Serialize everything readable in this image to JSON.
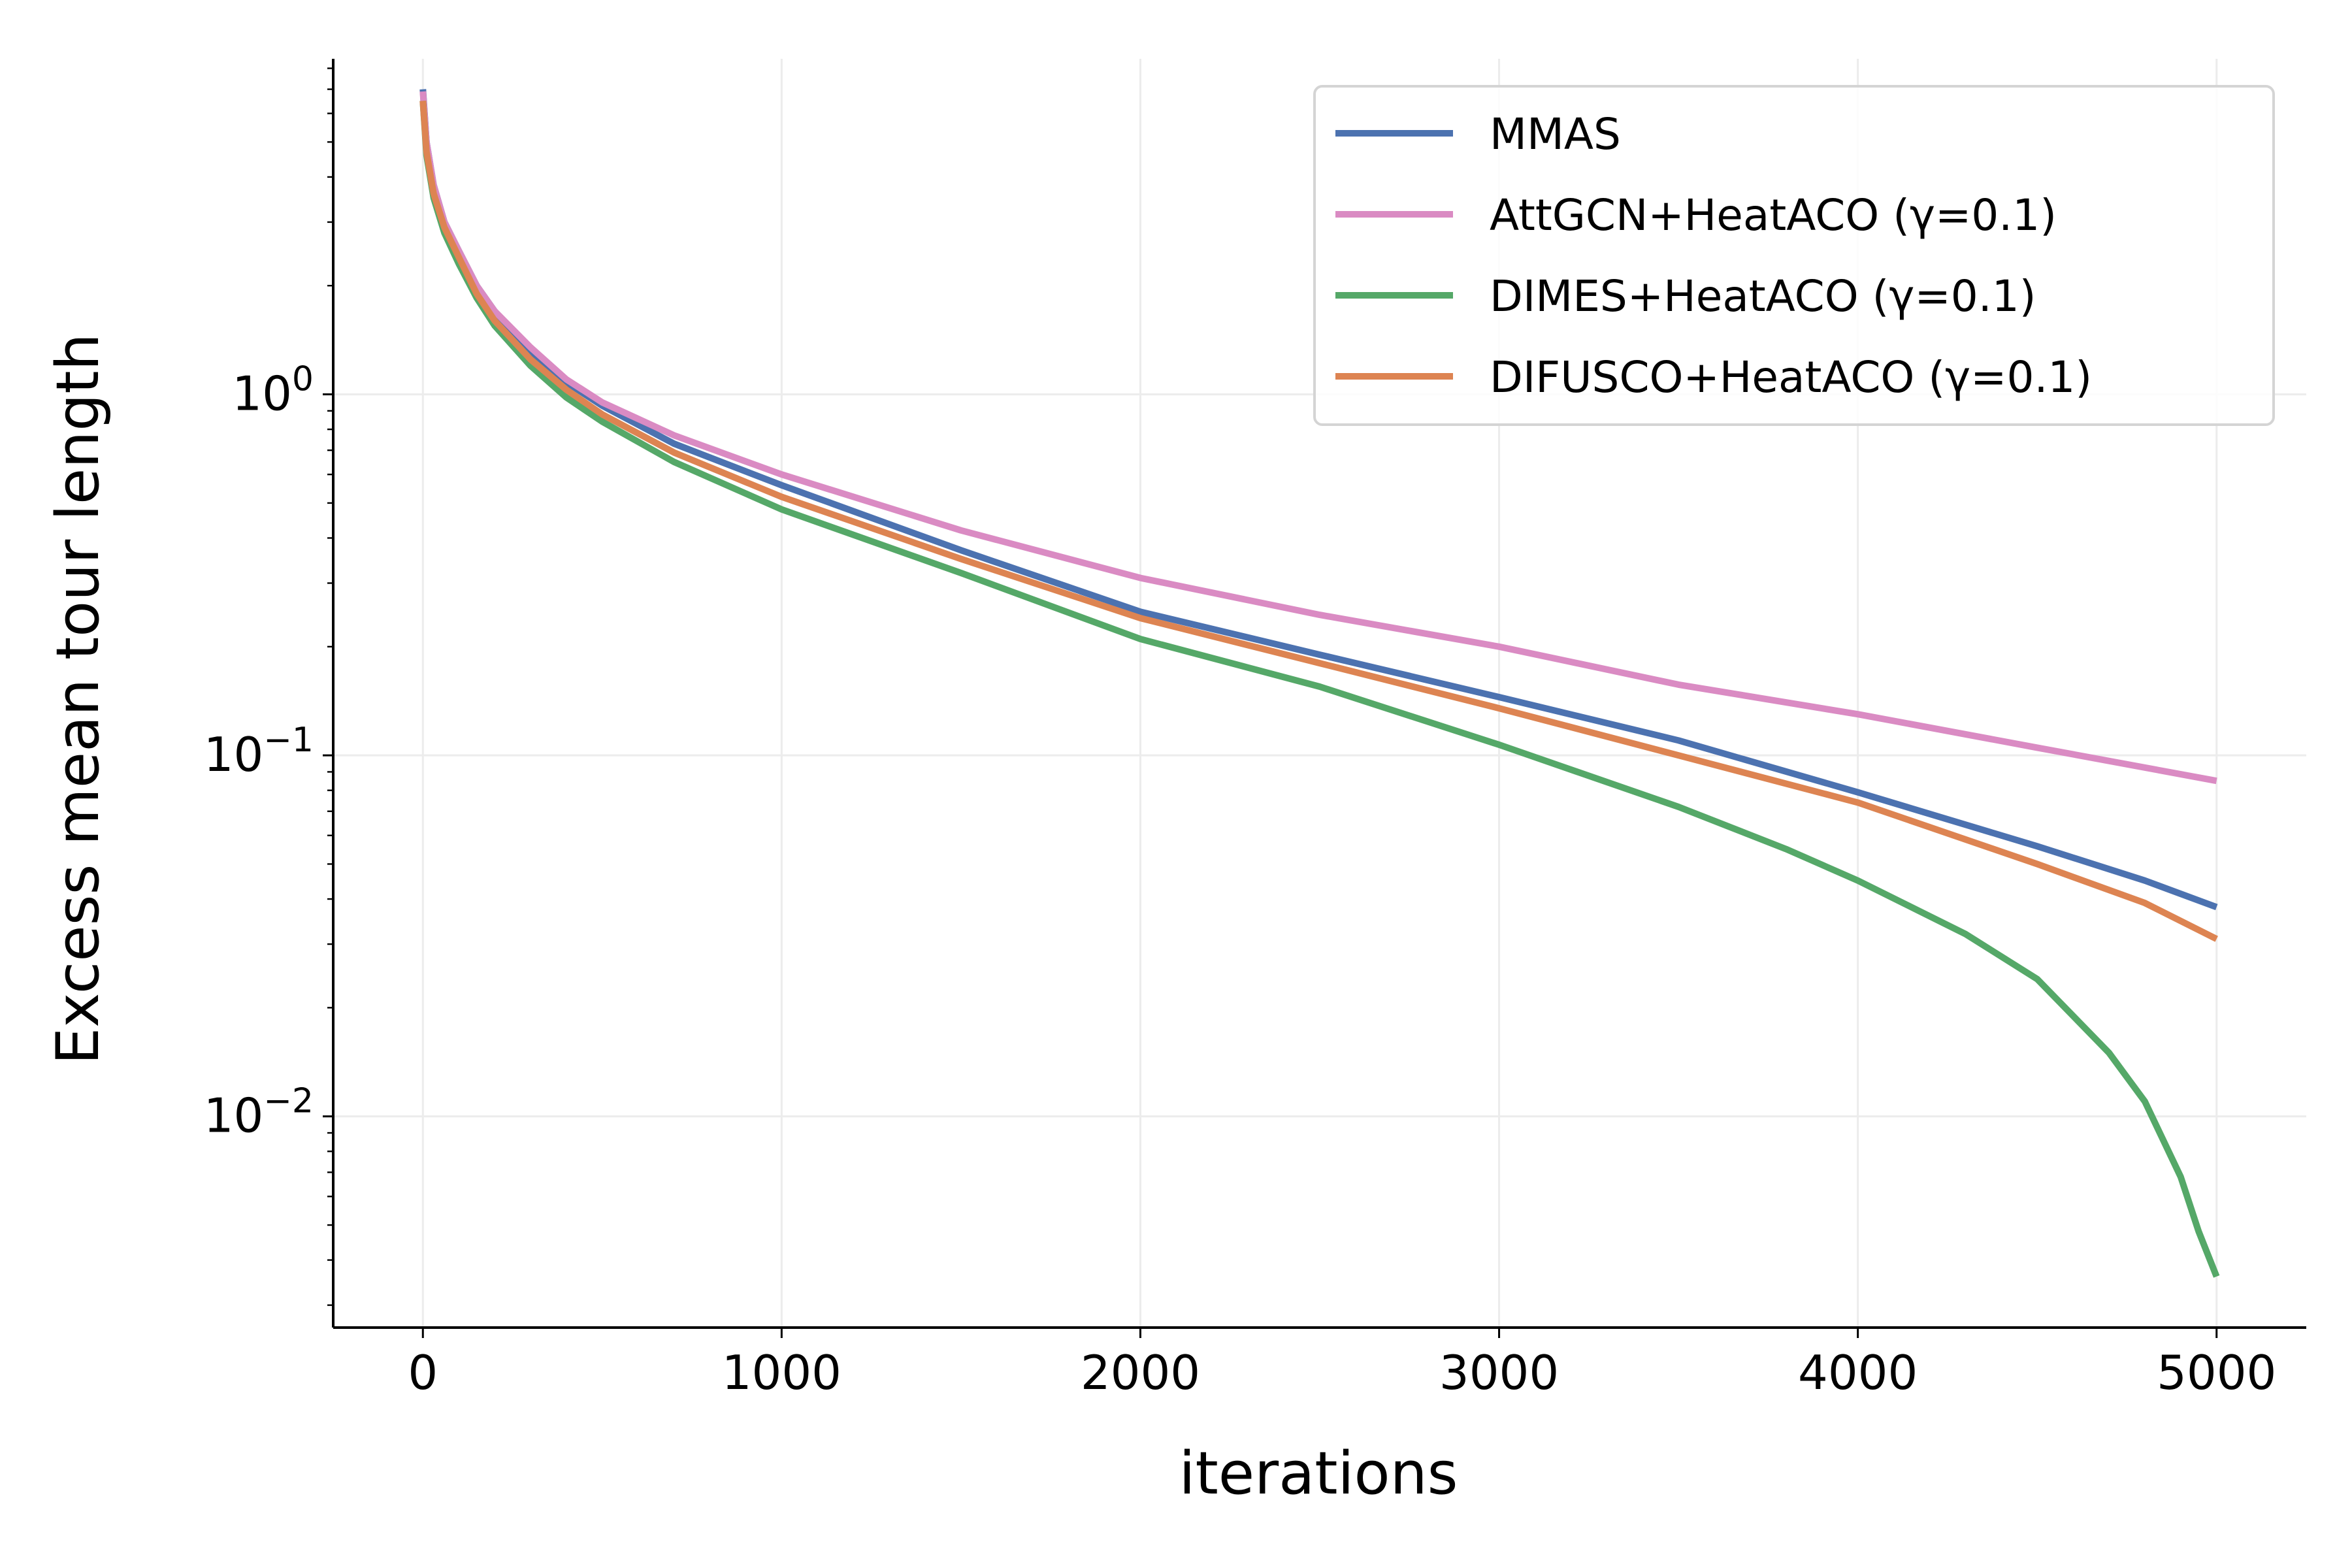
{
  "chart_data": {
    "type": "line",
    "xlabel": "iterations",
    "ylabel": "Excess mean tour length",
    "xlim": [
      -250,
      5250
    ],
    "ylim": [
      0.0026,
      8.5
    ],
    "yscale": "log",
    "grid": true,
    "legend_position": "top-right",
    "x_ticks": [
      {
        "value": 0,
        "label": "0"
      },
      {
        "value": 1000,
        "label": "1000"
      },
      {
        "value": 2000,
        "label": "2000"
      },
      {
        "value": 3000,
        "label": "3000"
      },
      {
        "value": 4000,
        "label": "4000"
      },
      {
        "value": 5000,
        "label": "5000"
      }
    ],
    "y_ticks": [
      {
        "value": 1,
        "base": "10",
        "exp": "0"
      },
      {
        "value": 0.1,
        "base": "10",
        "exp": "−1"
      },
      {
        "value": 0.01,
        "base": "10",
        "exp": "−2"
      }
    ],
    "series": [
      {
        "name": "MMAS",
        "color": "#4c72b0",
        "x": [
          0,
          10,
          30,
          60,
          100,
          150,
          200,
          300,
          400,
          500,
          700,
          1000,
          1500,
          2000,
          2500,
          3000,
          3500,
          4000,
          4500,
          4800,
          5000
        ],
        "y": [
          7.0,
          5.0,
          3.8,
          3.0,
          2.5,
          2.0,
          1.7,
          1.3,
          1.08,
          0.93,
          0.73,
          0.56,
          0.37,
          0.25,
          0.19,
          0.145,
          0.11,
          0.079,
          0.056,
          0.045,
          0.038
        ]
      },
      {
        "name": "AttGCN+HeatACO (γ=0.1)",
        "color": "#da8bc3",
        "x": [
          0,
          10,
          30,
          60,
          100,
          150,
          200,
          300,
          400,
          500,
          700,
          1000,
          1500,
          2000,
          2500,
          3000,
          3500,
          4000,
          4500,
          5000
        ],
        "y": [
          6.9,
          5.0,
          3.8,
          3.0,
          2.5,
          2.0,
          1.7,
          1.35,
          1.1,
          0.95,
          0.77,
          0.6,
          0.42,
          0.31,
          0.245,
          0.2,
          0.157,
          0.13,
          0.105,
          0.085
        ]
      },
      {
        "name": "DIMES+HeatACO (γ=0.1)",
        "color": "#55a868",
        "x": [
          0,
          10,
          30,
          60,
          100,
          150,
          200,
          300,
          400,
          500,
          700,
          1000,
          1500,
          2000,
          2500,
          3000,
          3500,
          3800,
          4000,
          4300,
          4500,
          4700,
          4800,
          4900,
          4950,
          5000
        ],
        "y": [
          6.5,
          4.6,
          3.5,
          2.8,
          2.3,
          1.85,
          1.55,
          1.2,
          0.98,
          0.84,
          0.65,
          0.48,
          0.32,
          0.21,
          0.155,
          0.107,
          0.072,
          0.055,
          0.045,
          0.032,
          0.024,
          0.015,
          0.011,
          0.0068,
          0.0048,
          0.0036
        ]
      },
      {
        "name": "DIFUSCO+HeatACO (γ=0.1)",
        "color": "#dd8452",
        "x": [
          0,
          10,
          30,
          60,
          100,
          150,
          200,
          300,
          400,
          500,
          700,
          1000,
          1500,
          2000,
          2500,
          3000,
          3500,
          4000,
          4500,
          4800,
          5000
        ],
        "y": [
          6.5,
          4.7,
          3.6,
          2.9,
          2.4,
          1.9,
          1.6,
          1.25,
          1.03,
          0.88,
          0.69,
          0.52,
          0.35,
          0.24,
          0.18,
          0.135,
          0.1,
          0.074,
          0.05,
          0.039,
          0.031
        ]
      }
    ]
  }
}
